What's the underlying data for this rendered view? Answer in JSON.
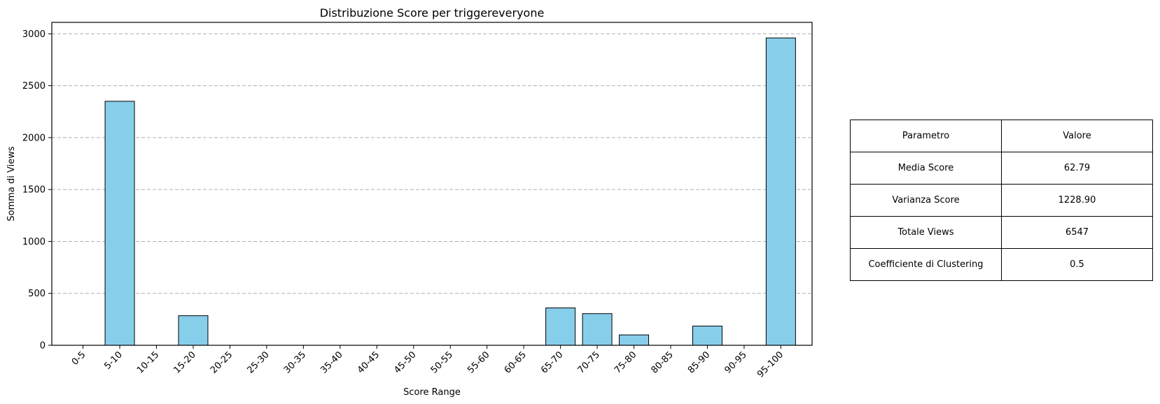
{
  "chart_data": {
    "type": "bar",
    "title": "Distribuzione Score per triggereveryone",
    "xlabel": "Score Range",
    "ylabel": "Somma di Views",
    "categories": [
      "0-5",
      "5-10",
      "10-15",
      "15-20",
      "20-25",
      "25-30",
      "30-35",
      "35-40",
      "40-45",
      "45-50",
      "50-55",
      "55-60",
      "60-65",
      "65-70",
      "70-75",
      "75-80",
      "80-85",
      "85-90",
      "90-95",
      "95-100"
    ],
    "values": [
      0,
      2350,
      0,
      285,
      0,
      0,
      0,
      0,
      0,
      0,
      0,
      0,
      0,
      360,
      305,
      100,
      0,
      185,
      0,
      2960
    ],
    "ylim": [
      0,
      3110
    ],
    "yticks": [
      0,
      500,
      1000,
      1500,
      2000,
      2500,
      3000
    ],
    "grid": "y-dashed",
    "bar_color": "#87CEEB",
    "edge_color": "#000000"
  },
  "table": {
    "headers": [
      "Parametro",
      "Valore"
    ],
    "rows": [
      [
        "Media Score",
        "62.79"
      ],
      [
        "Varianza Score",
        "1228.90"
      ],
      [
        "Totale Views",
        "6547"
      ],
      [
        "Coefficiente di Clustering",
        "0.5"
      ]
    ]
  }
}
